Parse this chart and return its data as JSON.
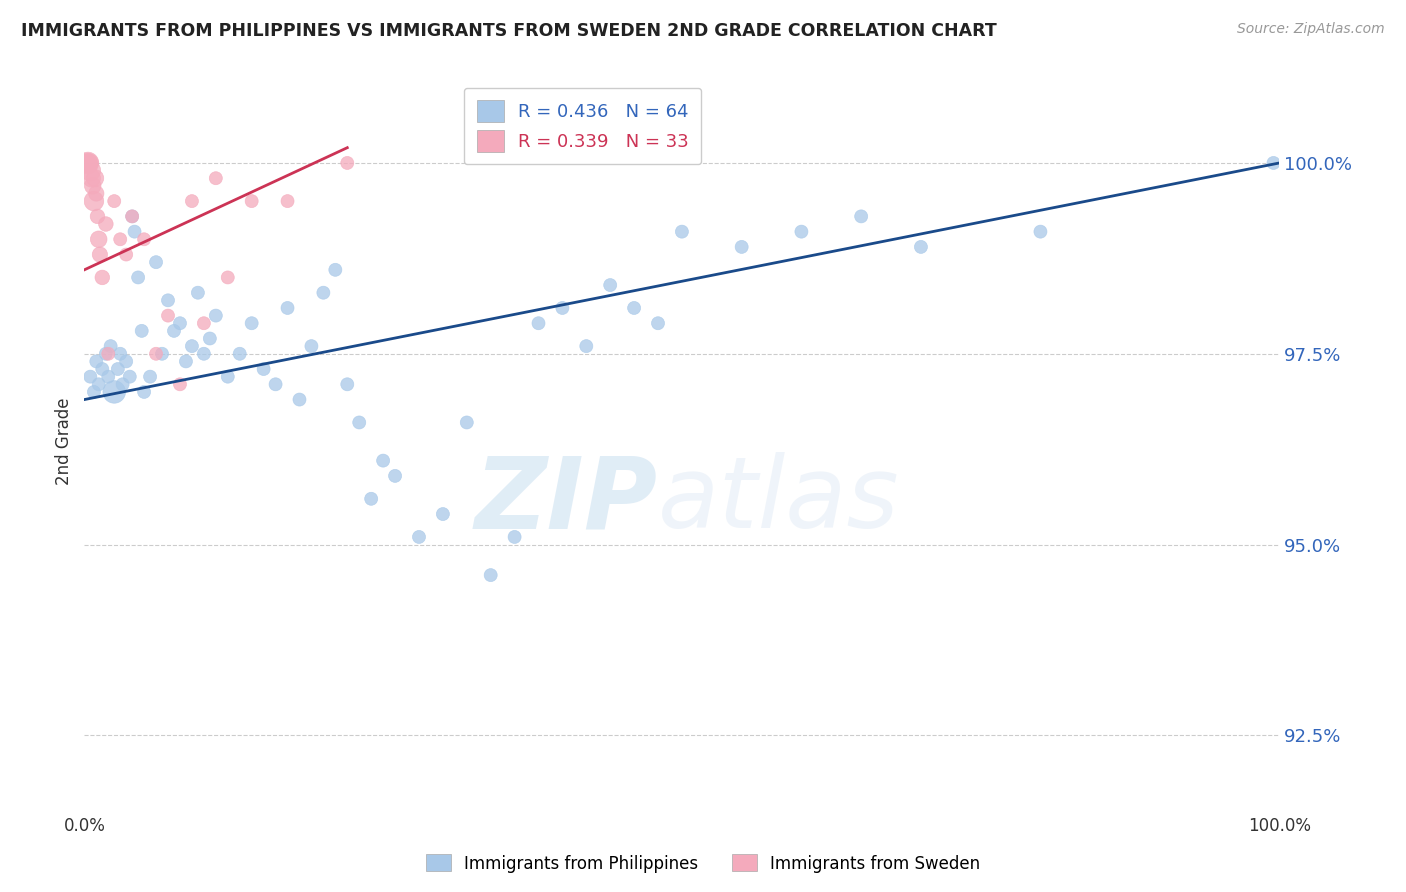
{
  "title": "IMMIGRANTS FROM PHILIPPINES VS IMMIGRANTS FROM SWEDEN 2ND GRADE CORRELATION CHART",
  "source": "Source: ZipAtlas.com",
  "xlabel_blue": "Immigrants from Philippines",
  "xlabel_pink": "Immigrants from Sweden",
  "ylabel": "2nd Grade",
  "R_blue": 0.436,
  "N_blue": 64,
  "R_pink": 0.339,
  "N_pink": 33,
  "xlim": [
    0.0,
    100.0
  ],
  "ylim": [
    91.5,
    101.2
  ],
  "yticks": [
    92.5,
    95.0,
    97.5,
    100.0
  ],
  "xticks": [
    0.0,
    100.0
  ],
  "blue_color": "#a8c8e8",
  "pink_color": "#f4aabc",
  "blue_line_color": "#1a4a8a",
  "pink_line_color": "#cc3355",
  "watermark_zip": "ZIP",
  "watermark_atlas": "atlas",
  "blue_scatter_x": [
    0.5,
    0.8,
    1.0,
    1.2,
    1.5,
    1.8,
    2.0,
    2.2,
    2.5,
    2.8,
    3.0,
    3.2,
    3.5,
    3.8,
    4.0,
    4.2,
    4.5,
    4.8,
    5.0,
    5.5,
    6.0,
    6.5,
    7.0,
    7.5,
    8.0,
    8.5,
    9.0,
    9.5,
    10.0,
    10.5,
    11.0,
    12.0,
    13.0,
    14.0,
    15.0,
    16.0,
    17.0,
    18.0,
    19.0,
    20.0,
    21.0,
    22.0,
    23.0,
    24.0,
    25.0,
    26.0,
    28.0,
    30.0,
    32.0,
    34.0,
    36.0,
    38.0,
    40.0,
    42.0,
    44.0,
    46.0,
    48.0,
    50.0,
    55.0,
    60.0,
    65.0,
    70.0,
    80.0,
    99.5
  ],
  "blue_scatter_y": [
    97.2,
    97.0,
    97.4,
    97.1,
    97.3,
    97.5,
    97.2,
    97.6,
    97.0,
    97.3,
    97.5,
    97.1,
    97.4,
    97.2,
    99.3,
    99.1,
    98.5,
    97.8,
    97.0,
    97.2,
    98.7,
    97.5,
    98.2,
    97.8,
    97.9,
    97.4,
    97.6,
    98.3,
    97.5,
    97.7,
    98.0,
    97.2,
    97.5,
    97.9,
    97.3,
    97.1,
    98.1,
    96.9,
    97.6,
    98.3,
    98.6,
    97.1,
    96.6,
    95.6,
    96.1,
    95.9,
    95.1,
    95.4,
    96.6,
    94.6,
    95.1,
    97.9,
    98.1,
    97.6,
    98.4,
    98.1,
    97.9,
    99.1,
    98.9,
    99.1,
    99.3,
    98.9,
    99.1,
    100.0
  ],
  "blue_scatter_sizes": [
    40,
    40,
    40,
    40,
    40,
    40,
    40,
    40,
    120,
    40,
    40,
    40,
    40,
    40,
    40,
    40,
    40,
    40,
    40,
    40,
    40,
    40,
    40,
    40,
    40,
    40,
    40,
    40,
    40,
    40,
    40,
    40,
    40,
    40,
    40,
    40,
    40,
    40,
    40,
    40,
    40,
    40,
    40,
    40,
    40,
    40,
    40,
    40,
    40,
    40,
    40,
    40,
    40,
    40,
    40,
    40,
    40,
    40,
    40,
    40,
    40,
    40,
    40,
    40
  ],
  "pink_scatter_x": [
    0.1,
    0.15,
    0.2,
    0.25,
    0.3,
    0.4,
    0.5,
    0.6,
    0.7,
    0.8,
    0.9,
    1.0,
    1.1,
    1.2,
    1.3,
    1.5,
    1.8,
    2.0,
    2.5,
    3.0,
    3.5,
    4.0,
    5.0,
    6.0,
    7.0,
    8.0,
    9.0,
    10.0,
    11.0,
    12.0,
    14.0,
    17.0,
    22.0
  ],
  "pink_scatter_y": [
    100.0,
    100.0,
    100.0,
    100.0,
    100.0,
    100.0,
    99.9,
    99.8,
    99.7,
    99.5,
    99.8,
    99.6,
    99.3,
    99.0,
    98.8,
    98.5,
    99.2,
    97.5,
    99.5,
    99.0,
    98.8,
    99.3,
    99.0,
    97.5,
    98.0,
    97.1,
    99.5,
    97.9,
    99.8,
    98.5,
    99.5,
    99.5,
    100.0
  ],
  "pink_scatter_sizes": [
    40,
    50,
    70,
    90,
    110,
    80,
    100,
    75,
    65,
    90,
    70,
    55,
    50,
    65,
    55,
    50,
    50,
    40,
    40,
    40,
    40,
    40,
    40,
    40,
    40,
    40,
    40,
    40,
    40,
    40,
    40,
    40,
    40
  ]
}
